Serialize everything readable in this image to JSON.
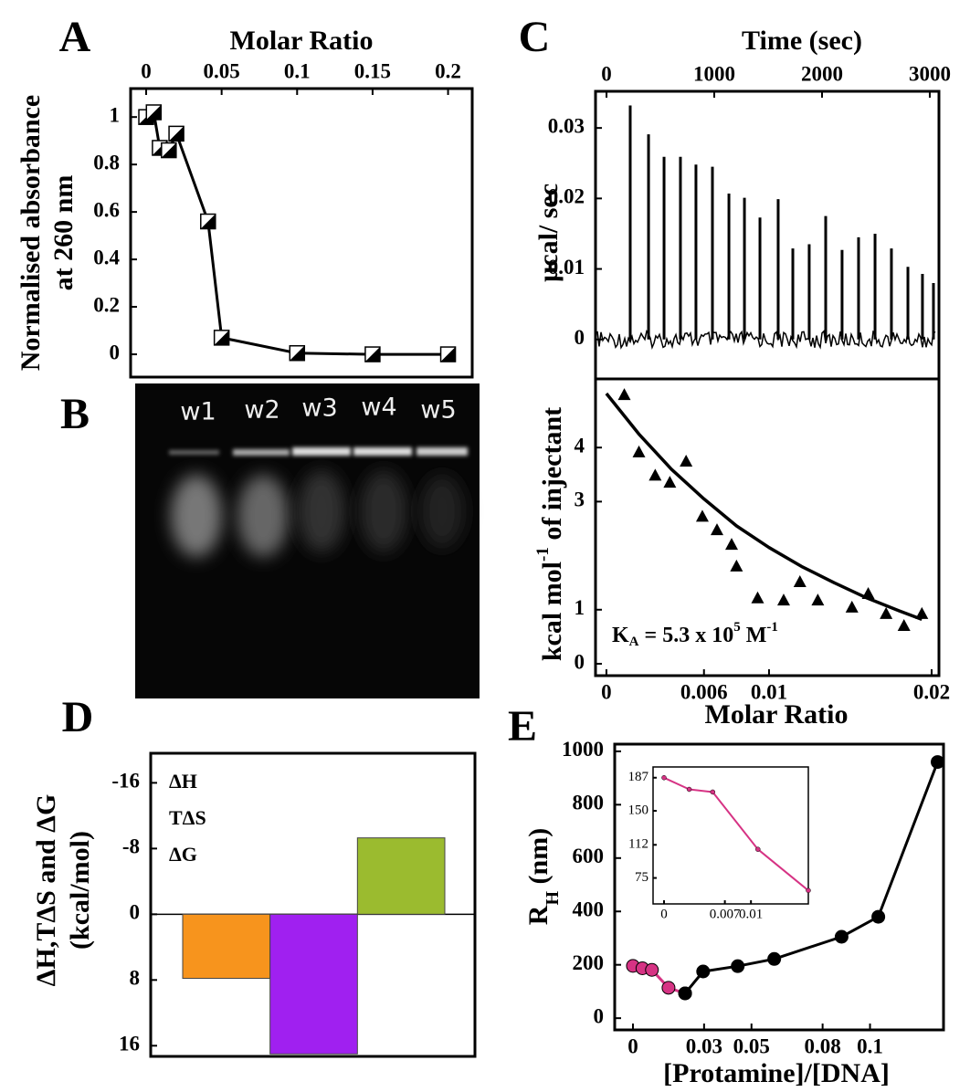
{
  "gel": {
    "panel": "B",
    "lanes": [
      "w1",
      "w2",
      "w3",
      "w4",
      "w5"
    ]
  },
  "chart_data": [
    {
      "type": "line",
      "panel": "A",
      "xlabel": "Molar Ratio",
      "ylabel": [
        "Normalised absorbance",
        "at 260 nm"
      ],
      "x": [
        0,
        0.005,
        0.009,
        0.015,
        0.02,
        0.041,
        0.05,
        0.1,
        0.15,
        0.2
      ],
      "values": [
        1.0,
        1.02,
        0.87,
        0.86,
        0.93,
        0.56,
        0.07,
        0.005,
        0,
        0
      ],
      "color": "#000000",
      "xlim": [
        -0.0103,
        0.216
      ],
      "ylim": [
        -0.096,
        1.12
      ],
      "xticks": [
        0,
        0.05,
        0.1,
        0.15,
        0.2
      ],
      "yticks": [
        0,
        0.2,
        0.4,
        0.6,
        0.8,
        1
      ]
    },
    {
      "type": "spikes",
      "panel": "C",
      "xlabel": "Time (sec)",
      "ylabel": "µcal/ sec",
      "x": [
        220,
        390,
        534,
        686,
        830,
        983,
        1136,
        1280,
        1424,
        1593,
        1729,
        1881,
        2034,
        2186,
        2339,
        2492,
        2644,
        2797,
        2932,
        3034
      ],
      "values": [
        0.0332,
        0.0291,
        0.0259,
        0.0259,
        0.0248,
        0.0245,
        0.0207,
        0.0201,
        0.0173,
        0.0199,
        0.0129,
        0.0135,
        0.0175,
        0.0127,
        0.0145,
        0.015,
        0.0129,
        0.0103,
        0.0093,
        0.008
      ],
      "color": "#000000",
      "xlim": [
        -102,
        3085
      ],
      "ylim": [
        -0.0056,
        0.0352
      ],
      "xticks": [
        0,
        1000,
        2000,
        3000
      ],
      "yticks": [
        0,
        0.01,
        0.02,
        0.03
      ]
    },
    {
      "type": "scatter",
      "xlabel": "Molar Ratio",
      "ylabel": [
        "kcal mol",
        "-1",
        " of injectant"
      ],
      "annotation": [
        "K",
        "A",
        " = 5.3 x 10",
        "5",
        " M",
        "-1"
      ],
      "x": [
        0.0011,
        0.002,
        0.003,
        0.0039,
        0.0049,
        0.0059,
        0.0068,
        0.0077,
        0.008,
        0.0093,
        0.0109,
        0.0119,
        0.013,
        0.0151,
        0.0161,
        0.0172,
        0.0183,
        0.0194
      ],
      "values": [
        4.98,
        3.92,
        3.49,
        3.36,
        3.75,
        2.73,
        2.48,
        2.21,
        1.81,
        1.22,
        1.18,
        1.52,
        1.18,
        1.05,
        1.3,
        0.93,
        0.71,
        0.93
      ],
      "fit": {
        "x": [
          0,
          0.002,
          0.004,
          0.006,
          0.008,
          0.01,
          0.012,
          0.014,
          0.016,
          0.018,
          0.0194
        ],
        "values": [
          5.0,
          4.25,
          3.6,
          3.05,
          2.55,
          2.15,
          1.8,
          1.5,
          1.22,
          0.98,
          0.82
        ]
      },
      "color": "#000000",
      "xlim": [
        -0.00067,
        0.02045
      ],
      "ylim": [
        -0.22,
        5.27
      ],
      "xticks": [
        0,
        0.006,
        0.01,
        0.02
      ],
      "yticks": [
        0,
        1,
        3,
        4
      ]
    },
    {
      "type": "bar",
      "panel": "D",
      "ylabel": [
        "ΔH,TΔS and ΔG",
        "(kcal/mol)"
      ],
      "categories": [
        "ΔH",
        "TΔS",
        "ΔG"
      ],
      "values": [
        7.8,
        17,
        -9.3
      ],
      "colors": [
        "#f7941d",
        "#a020f0",
        "#9bbb2f"
      ],
      "legend": "upper left",
      "ylim": [
        17.3,
        -19.6
      ],
      "yticks": [
        -16,
        -8,
        0,
        8,
        16
      ]
    },
    {
      "type": "line",
      "panel": "E",
      "xlabel": "[Protamine]/[DNA]",
      "ylabel": [
        "R",
        "H",
        " (nm)"
      ],
      "series": [
        {
          "color": "#d63384",
          "x": [
            0,
            0.004,
            0.008,
            0.015,
            0.022
          ],
          "values": [
            196,
            187,
            181,
            114,
            93
          ]
        },
        {
          "color": "#000000",
          "x": [
            0.022,
            0.0296,
            0.0442,
            0.0596,
            0.088,
            0.1035,
            0.1285
          ],
          "values": [
            93,
            175,
            195,
            222,
            305,
            380,
            960
          ]
        }
      ],
      "xlim": [
        -0.0077,
        0.131
      ],
      "ylim": [
        -44,
        1027
      ],
      "xticks": [
        0,
        0.03,
        0.05,
        0.08,
        0.1
      ],
      "yticks": [
        0,
        200,
        400,
        600,
        800,
        1000
      ],
      "inset": {
        "type": "line",
        "series": [
          {
            "color": "#d63384",
            "x": [
              0,
              0.0029,
              0.0056,
              0.0108,
              0.0166
            ],
            "values": [
              187,
              174,
              171,
              107,
              61
            ]
          }
        ],
        "xlim": [
          -0.00126,
          0.0166
        ],
        "ylim": [
          46,
          199
        ],
        "xticks": [
          0,
          0.007,
          0.01
        ],
        "yticks": [
          75,
          112,
          150,
          187
        ]
      }
    }
  ]
}
